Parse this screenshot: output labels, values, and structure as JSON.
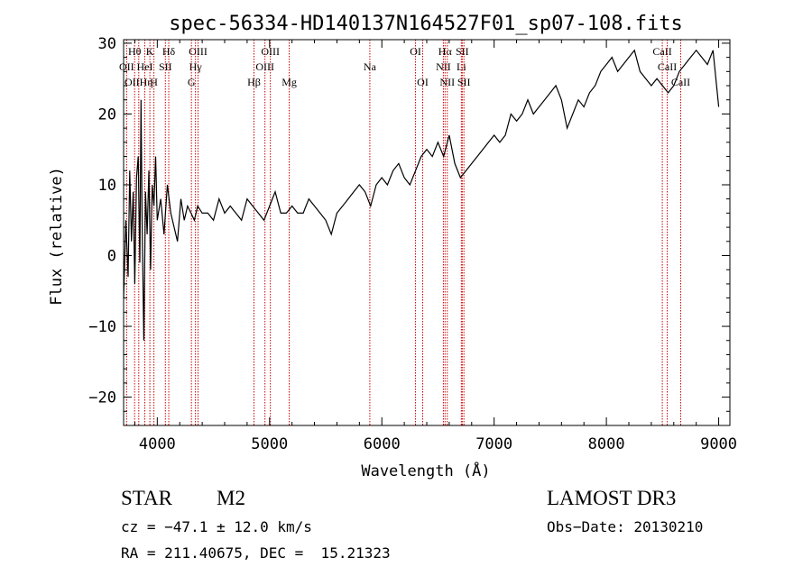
{
  "chart_data": {
    "type": "line",
    "title": "spec-56334-HD140137N164527F01_sp07-108.fits",
    "xlabel": "Wavelength (Å)",
    "ylabel": "Flux (relative)",
    "xlim": [
      3700,
      9100
    ],
    "ylim": [
      -24,
      30.5
    ],
    "x_ticks": [
      4000,
      5000,
      6000,
      7000,
      8000,
      9000
    ],
    "y_ticks": [
      -20,
      -10,
      0,
      10,
      20,
      30
    ],
    "grid": false,
    "series": [
      {
        "name": "flux",
        "x": [
          3700,
          3720,
          3740,
          3755,
          3770,
          3785,
          3800,
          3815,
          3830,
          3845,
          3855,
          3865,
          3880,
          3895,
          3910,
          3925,
          3940,
          3955,
          3970,
          3985,
          4000,
          4030,
          4060,
          4090,
          4120,
          4150,
          4180,
          4210,
          4240,
          4270,
          4300,
          4330,
          4360,
          4400,
          4450,
          4500,
          4550,
          4600,
          4650,
          4700,
          4750,
          4800,
          4850,
          4900,
          4950,
          5000,
          5050,
          5100,
          5150,
          5200,
          5250,
          5300,
          5350,
          5400,
          5450,
          5500,
          5550,
          5600,
          5650,
          5700,
          5750,
          5800,
          5850,
          5900,
          5950,
          6000,
          6050,
          6100,
          6150,
          6200,
          6250,
          6300,
          6350,
          6400,
          6450,
          6500,
          6550,
          6600,
          6650,
          6700,
          6750,
          6800,
          6850,
          6900,
          6950,
          7000,
          7050,
          7100,
          7150,
          7200,
          7250,
          7300,
          7350,
          7400,
          7450,
          7500,
          7550,
          7600,
          7650,
          7700,
          7750,
          7800,
          7850,
          7900,
          7950,
          8000,
          8050,
          8100,
          8150,
          8200,
          8250,
          8300,
          8350,
          8400,
          8450,
          8500,
          8550,
          8600,
          8650,
          8700,
          8750,
          8800,
          8850,
          8900,
          8950,
          9000
        ],
        "values": [
          -6,
          5,
          -3,
          12,
          2,
          9,
          -4,
          11,
          14,
          -1,
          22,
          5,
          -12,
          9,
          3,
          12,
          -2,
          10,
          7,
          14,
          5,
          8,
          3,
          10,
          6,
          4,
          2,
          8,
          5,
          7,
          6,
          5,
          7,
          6,
          6,
          5,
          8,
          6,
          7,
          6,
          5,
          8,
          7,
          6,
          5,
          7,
          9,
          6,
          6,
          7,
          6,
          6,
          8,
          7,
          6,
          5,
          3,
          6,
          7,
          8,
          9,
          10,
          9,
          7,
          10,
          11,
          10,
          12,
          13,
          11,
          10,
          12,
          14,
          15,
          14,
          16,
          14,
          17,
          13,
          11,
          12,
          13,
          14,
          15,
          16,
          17,
          16,
          17,
          20,
          19,
          20,
          22,
          20,
          21,
          22,
          23,
          24,
          22,
          18,
          20,
          22,
          21,
          23,
          24,
          26,
          27,
          28,
          26,
          27,
          28,
          29,
          26,
          25,
          24,
          25,
          24,
          23,
          24,
          26,
          27,
          28,
          29,
          28,
          27,
          29,
          21
        ],
        "color": "#000000"
      }
    ],
    "line_markers": {
      "color": "#cc0000",
      "lines": [
        {
          "name": "Hθ",
          "wavelength": 3798,
          "label": "Hθ",
          "row": 1
        },
        {
          "name": "OII",
          "wavelength": 3727,
          "label": "OII",
          "row": 2
        },
        {
          "name": "Hη",
          "wavelength": 3835,
          "label": "OIIHη",
          "row": 3
        },
        {
          "name": "K",
          "wavelength": 3934,
          "label": "K",
          "row": 1
        },
        {
          "name": "Hε",
          "wavelength": 3970,
          "label": "H",
          "row": 3
        },
        {
          "name": "HeI",
          "wavelength": 3889,
          "label": "HeI",
          "row": 2
        },
        {
          "name": "SII",
          "wavelength": 4072,
          "label": "SII",
          "row": 2
        },
        {
          "name": "Hδ",
          "wavelength": 4102,
          "label": "Hδ",
          "row": 1
        },
        {
          "name": "OIII",
          "wavelength": 4363,
          "label": "OIII",
          "row": 1
        },
        {
          "name": "Hγ",
          "wavelength": 4340,
          "label": "Hγ",
          "row": 2
        },
        {
          "name": "G",
          "wavelength": 4304,
          "label": "G",
          "row": 3
        },
        {
          "name": "Hβ",
          "wavelength": 4861,
          "label": "Hβ",
          "row": 3
        },
        {
          "name": "OIII_1",
          "wavelength": 4959,
          "label": "OIII",
          "row": 2
        },
        {
          "name": "OIII_2",
          "wavelength": 5007,
          "label": "OIII",
          "row": 1
        },
        {
          "name": "Mg",
          "wavelength": 5175,
          "label": "Mg",
          "row": 3
        },
        {
          "name": "Na",
          "wavelength": 5893,
          "label": "Na",
          "row": 2
        },
        {
          "name": "OI_1",
          "wavelength": 6300,
          "label": "OI",
          "row": 1
        },
        {
          "name": "OI_2",
          "wavelength": 6364,
          "label": "OI",
          "row": 3
        },
        {
          "name": "NII_1",
          "wavelength": 6548,
          "label": "NII",
          "row": 2
        },
        {
          "name": "Hα",
          "wavelength": 6563,
          "label": "Hα",
          "row": 1
        },
        {
          "name": "NII_2",
          "wavelength": 6583,
          "label": "NII",
          "row": 3
        },
        {
          "name": "Li",
          "wavelength": 6708,
          "label": "Li",
          "row": 2
        },
        {
          "name": "SII_1",
          "wavelength": 6716,
          "label": "SII",
          "row": 1
        },
        {
          "name": "SII_2",
          "wavelength": 6731,
          "label": "SII",
          "row": 3
        },
        {
          "name": "CaII_1",
          "wavelength": 8498,
          "label": "CaII",
          "row": 1
        },
        {
          "name": "CaII_2",
          "wavelength": 8542,
          "label": "CaII",
          "row": 2
        },
        {
          "name": "CaII_3",
          "wavelength": 8662,
          "label": "CaII",
          "row": 3
        }
      ]
    }
  },
  "info": {
    "object_type": "STAR",
    "subclass": "M2",
    "survey": "LAMOST DR3",
    "cz": "cz = −47.1 ± 12.0 km/s",
    "obs_date": "Obs−Date: 20130210",
    "coords": "RA = 211.40675, DEC =  15.21323"
  }
}
